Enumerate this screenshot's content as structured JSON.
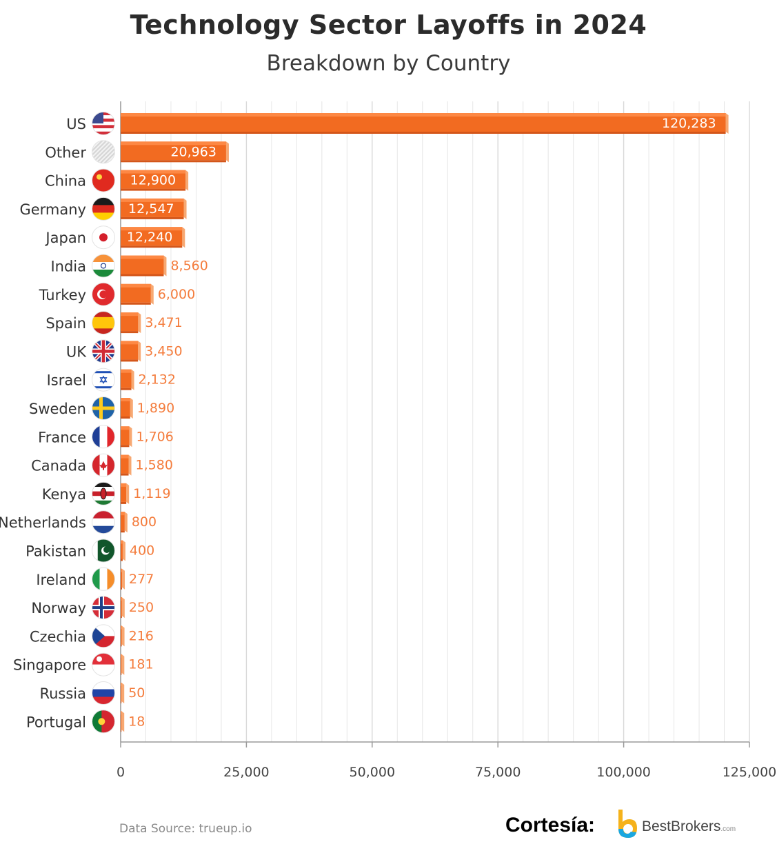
{
  "header": {
    "title": "Technology Sector Layoffs in 2024",
    "subtitle": "Breakdown by Country"
  },
  "footer": {
    "source": "Data Source: trueup.io",
    "courtesy": "Cortesía:",
    "brand_name": "BestBrokers",
    "brand_tld": ".com"
  },
  "colors": {
    "bar": "#f26b21",
    "bar_top": "#ff8d4a",
    "bar_side": "#f7a872",
    "label_inside": "#ffffff",
    "label_outside": "#f47c3c",
    "grid": "#e6e6e6",
    "axis": "#9a9a9a"
  },
  "chart_data": {
    "type": "bar",
    "orientation": "horizontal",
    "title": "Technology Sector Layoffs in 2024",
    "subtitle": "Breakdown by Country",
    "categories": [
      "US",
      "Other",
      "China",
      "Germany",
      "Japan",
      "India",
      "Turkey",
      "Spain",
      "UK",
      "Israel",
      "Sweden",
      "France",
      "Canada",
      "Kenya",
      "Netherlands",
      "Pakistan",
      "Ireland",
      "Norway",
      "Czechia",
      "Singapore",
      "Russia",
      "Portugal"
    ],
    "values": [
      120283,
      20963,
      12900,
      12547,
      12240,
      8560,
      6000,
      3471,
      3450,
      2132,
      1890,
      1706,
      1580,
      1119,
      800,
      400,
      277,
      250,
      216,
      181,
      50,
      18
    ],
    "value_labels": [
      "120,283",
      "20,963",
      "12,900",
      "12,547",
      "12,240",
      "8,560",
      "6,000",
      "3,471",
      "3,450",
      "2,132",
      "1,890",
      "1,706",
      "1,580",
      "1,119",
      "800",
      "400",
      "277",
      "250",
      "216",
      "181",
      "50",
      "18"
    ],
    "flag_icons": [
      "us-flag-icon",
      "other-striped-icon",
      "china-flag-icon",
      "germany-flag-icon",
      "japan-flag-icon",
      "india-flag-icon",
      "turkey-flag-icon",
      "spain-flag-icon",
      "uk-flag-icon",
      "israel-flag-icon",
      "sweden-flag-icon",
      "france-flag-icon",
      "canada-flag-icon",
      "kenya-flag-icon",
      "netherlands-flag-icon",
      "pakistan-flag-icon",
      "ireland-flag-icon",
      "norway-flag-icon",
      "czechia-flag-icon",
      "singapore-flag-icon",
      "russia-flag-icon",
      "portugal-flag-icon"
    ],
    "xlim": [
      0,
      125000
    ],
    "x_ticks": [
      0,
      25000,
      50000,
      75000,
      100000,
      125000
    ],
    "x_tick_labels": [
      "0",
      "25,000",
      "50,000",
      "75,000",
      "100,000",
      "125,000"
    ],
    "minor_gridlines_every": 5000,
    "grid": true,
    "legend": "none"
  }
}
